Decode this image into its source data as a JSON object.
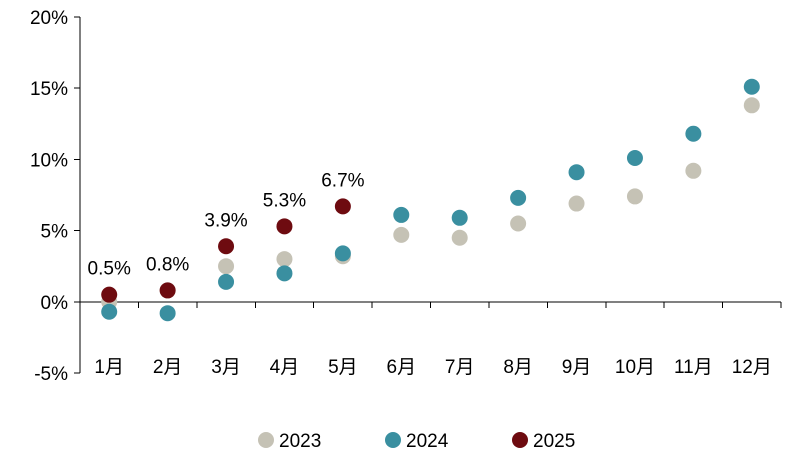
{
  "chart_data": {
    "type": "scatter",
    "title": "",
    "xlabel": "",
    "ylabel": "",
    "categories": [
      "1月",
      "2月",
      "3月",
      "4月",
      "5月",
      "6月",
      "7月",
      "8月",
      "9月",
      "10月",
      "11月",
      "12月"
    ],
    "ylim": [
      -5,
      20
    ],
    "y_ticks": [
      "-5%",
      "0%",
      "5%",
      "10%",
      "15%",
      "20%"
    ],
    "y_tick_values": [
      -5,
      0,
      5,
      10,
      15,
      20
    ],
    "grid": false,
    "legend_position": "bottom",
    "series": [
      {
        "name": "2023",
        "color": "#c5c2b5",
        "values": [
          0.0,
          0.8,
          2.5,
          3.0,
          3.2,
          4.7,
          4.5,
          5.5,
          6.9,
          7.4,
          9.2,
          13.8
        ]
      },
      {
        "name": "2024",
        "color": "#3a8fa0",
        "values": [
          -0.7,
          -0.8,
          1.4,
          2.0,
          3.4,
          6.1,
          5.9,
          7.3,
          9.1,
          10.1,
          11.8,
          15.1
        ]
      },
      {
        "name": "2025",
        "color": "#6e0b10",
        "values": [
          0.5,
          0.8,
          3.9,
          5.3,
          6.7
        ],
        "labels": [
          "0.5%",
          "0.8%",
          "3.9%",
          "5.3%",
          "6.7%"
        ]
      }
    ]
  }
}
